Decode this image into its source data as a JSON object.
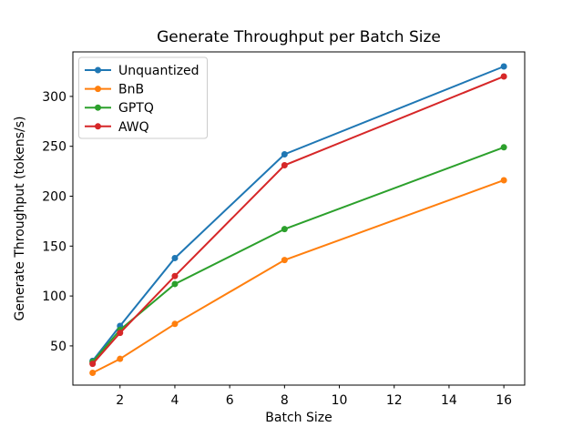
{
  "chart_data": {
    "type": "line",
    "title": "Generate Throughput per Batch Size",
    "xlabel": "Batch Size",
    "ylabel": "Generate Throughput (tokens/s)",
    "x": [
      1,
      2,
      4,
      8,
      16
    ],
    "series": [
      {
        "name": "Unquantized",
        "color": "#1f77b4",
        "values": [
          35,
          70,
          138,
          242,
          330
        ]
      },
      {
        "name": "BnB",
        "color": "#ff7f0e",
        "values": [
          23,
          37,
          72,
          136,
          216
        ]
      },
      {
        "name": "GPTQ",
        "color": "#2ca02c",
        "values": [
          34,
          66,
          112,
          167,
          249
        ]
      },
      {
        "name": "AWQ",
        "color": "#d62728",
        "values": [
          32,
          63,
          120,
          231,
          320
        ]
      }
    ],
    "xticks": [
      2,
      4,
      6,
      8,
      10,
      12,
      14,
      16
    ],
    "yticks": [
      50,
      100,
      150,
      200,
      250,
      300
    ],
    "xlim": [
      0.28,
      16.76
    ],
    "ylim": [
      10.7,
      344.6
    ],
    "grid": false,
    "marker": "o",
    "legend": {
      "position": "upper-left",
      "entries": [
        "Unquantized",
        "BnB",
        "GPTQ",
        "AWQ"
      ]
    }
  }
}
